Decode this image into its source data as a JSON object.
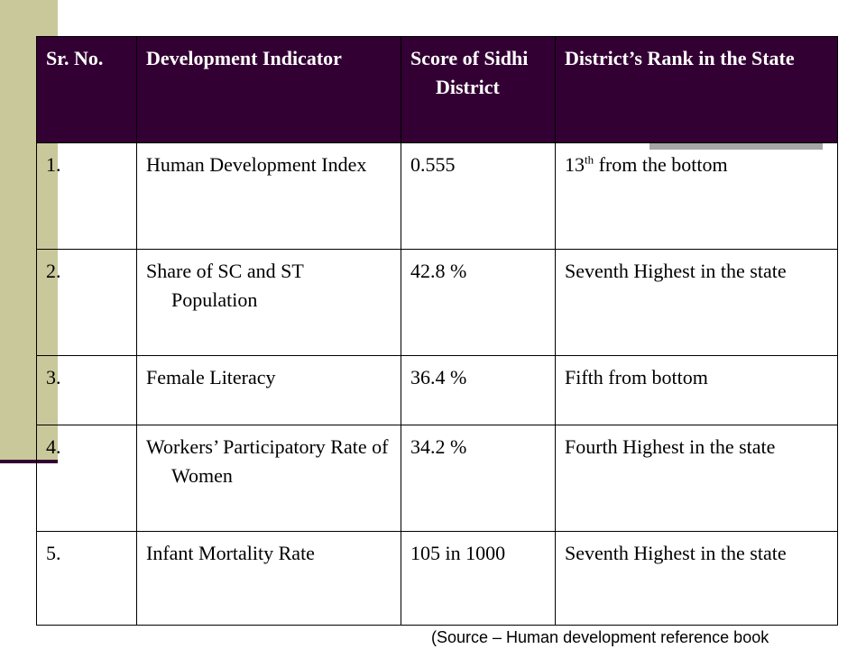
{
  "table": {
    "headers": [
      "Sr. No.",
      "Development Indicator",
      "Score of Sidhi District",
      "District’s Rank in the State"
    ],
    "rows": [
      {
        "sr": "1.",
        "indicator": "Human Development Index",
        "score": "0.555",
        "rank_num": "13",
        "rank_sup": "th",
        "rank_rest": " from the bottom"
      },
      {
        "sr": "2.",
        "indicator": "Share of SC and ST Population",
        "score": "42.8 %",
        "rank": "Seventh Highest in the state"
      },
      {
        "sr": "3.",
        "indicator": "Female Literacy",
        "score": "36.4 %",
        "rank": "Fifth from bottom"
      },
      {
        "sr": "4.",
        "indicator": "Workers’ Participatory Rate of Women",
        "score": "34.2 %",
        "rank": "Fourth Highest in the state"
      },
      {
        "sr": "5.",
        "indicator": "Infant Mortality Rate",
        "score": "105 in 1000",
        "rank": "Seventh Highest in the state"
      }
    ]
  },
  "source": "(Source – Human development reference book",
  "colors": {
    "header_bg": "#330033",
    "header_text": "#ffffff",
    "left_bar": "#c8c89b",
    "gray_bar": "#a6a6a6"
  }
}
